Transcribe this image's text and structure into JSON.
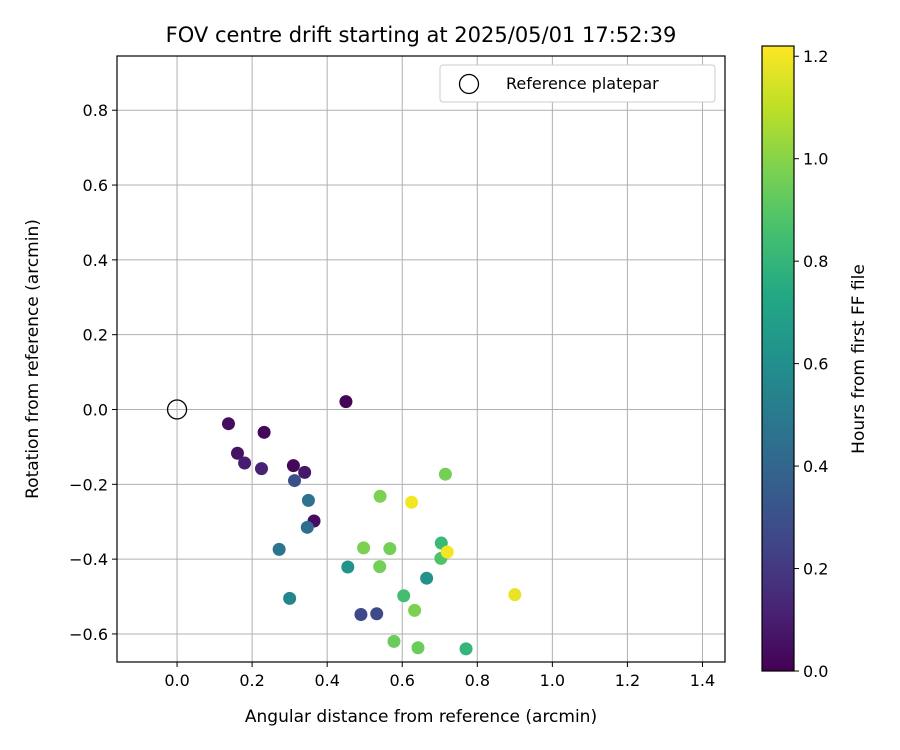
{
  "chart_data": {
    "type": "scatter",
    "title": "FOV centre drift starting at 2025/05/01 17:52:39",
    "xlabel": "Angular distance from reference (arcmin)",
    "ylabel": "Rotation from reference (arcmin)",
    "xlim": [
      -0.16,
      1.46
    ],
    "ylim": [
      -0.675,
      0.945
    ],
    "xticks": [
      0.0,
      0.2,
      0.4,
      0.6,
      0.8,
      1.0,
      1.2,
      1.4
    ],
    "xtick_labels": [
      "0.0",
      "0.2",
      "0.4",
      "0.6",
      "0.8",
      "1.0",
      "1.2",
      "1.4"
    ],
    "yticks": [
      -0.6,
      -0.4,
      -0.2,
      0.0,
      0.2,
      0.4,
      0.6,
      0.8
    ],
    "ytick_labels": [
      "−0.6",
      "−0.4",
      "−0.2",
      "0.0",
      "0.2",
      "0.4",
      "0.6",
      "0.8"
    ],
    "grid": true,
    "legend": {
      "placement": "top-right",
      "entries": [
        "Reference platepar"
      ]
    },
    "reference_point": {
      "x": 0.0,
      "y": 0.0,
      "label": "Reference platepar"
    },
    "colorbar": {
      "label": "Hours from first FF file",
      "range": [
        0.0,
        1.22
      ],
      "ticks": [
        0.0,
        0.2,
        0.4,
        0.6,
        0.8,
        1.0,
        1.2
      ],
      "tick_labels": [
        "0.0",
        "0.2",
        "0.4",
        "0.6",
        "0.8",
        "1.0",
        "1.2"
      ],
      "colormap": "viridis"
    },
    "points": [
      {
        "x": 0.137,
        "y": -0.038,
        "c": 0.04
      },
      {
        "x": 0.161,
        "y": -0.117,
        "c": 0.06
      },
      {
        "x": 0.18,
        "y": -0.143,
        "c": 0.1
      },
      {
        "x": 0.225,
        "y": -0.158,
        "c": 0.12
      },
      {
        "x": 0.232,
        "y": -0.061,
        "c": 0.02
      },
      {
        "x": 0.31,
        "y": -0.15,
        "c": 0.02
      },
      {
        "x": 0.34,
        "y": -0.168,
        "c": 0.08
      },
      {
        "x": 0.365,
        "y": -0.298,
        "c": 0.04
      },
      {
        "x": 0.45,
        "y": 0.021,
        "c": 0.01
      },
      {
        "x": 0.313,
        "y": -0.19,
        "c": 0.3
      },
      {
        "x": 0.35,
        "y": -0.243,
        "c": 0.46
      },
      {
        "x": 0.347,
        "y": -0.315,
        "c": 0.44
      },
      {
        "x": 0.272,
        "y": -0.374,
        "c": 0.48
      },
      {
        "x": 0.3,
        "y": -0.505,
        "c": 0.55
      },
      {
        "x": 0.455,
        "y": -0.421,
        "c": 0.62
      },
      {
        "x": 0.49,
        "y": -0.548,
        "c": 0.26
      },
      {
        "x": 0.532,
        "y": -0.546,
        "c": 0.28
      },
      {
        "x": 0.665,
        "y": -0.451,
        "c": 0.62
      },
      {
        "x": 0.704,
        "y": -0.357,
        "c": 0.82
      },
      {
        "x": 0.703,
        "y": -0.398,
        "c": 0.88
      },
      {
        "x": 0.604,
        "y": -0.498,
        "c": 0.85
      },
      {
        "x": 0.77,
        "y": -0.64,
        "c": 0.8
      },
      {
        "x": 0.541,
        "y": -0.232,
        "c": 0.98
      },
      {
        "x": 0.715,
        "y": -0.173,
        "c": 0.96
      },
      {
        "x": 0.497,
        "y": -0.37,
        "c": 0.98
      },
      {
        "x": 0.567,
        "y": -0.372,
        "c": 0.96
      },
      {
        "x": 0.54,
        "y": -0.42,
        "c": 0.96
      },
      {
        "x": 0.633,
        "y": -0.537,
        "c": 0.98
      },
      {
        "x": 0.578,
        "y": -0.62,
        "c": 0.94
      },
      {
        "x": 0.642,
        "y": -0.637,
        "c": 0.94
      },
      {
        "x": 0.625,
        "y": -0.248,
        "c": 1.2
      },
      {
        "x": 0.72,
        "y": -0.381,
        "c": 1.2
      },
      {
        "x": 0.9,
        "y": -0.495,
        "c": 1.18
      }
    ]
  },
  "colors": {
    "grid": "#b0b0b0",
    "axis": "#000000",
    "legend_border": "#cccccc",
    "reference_marker": "#000000"
  }
}
